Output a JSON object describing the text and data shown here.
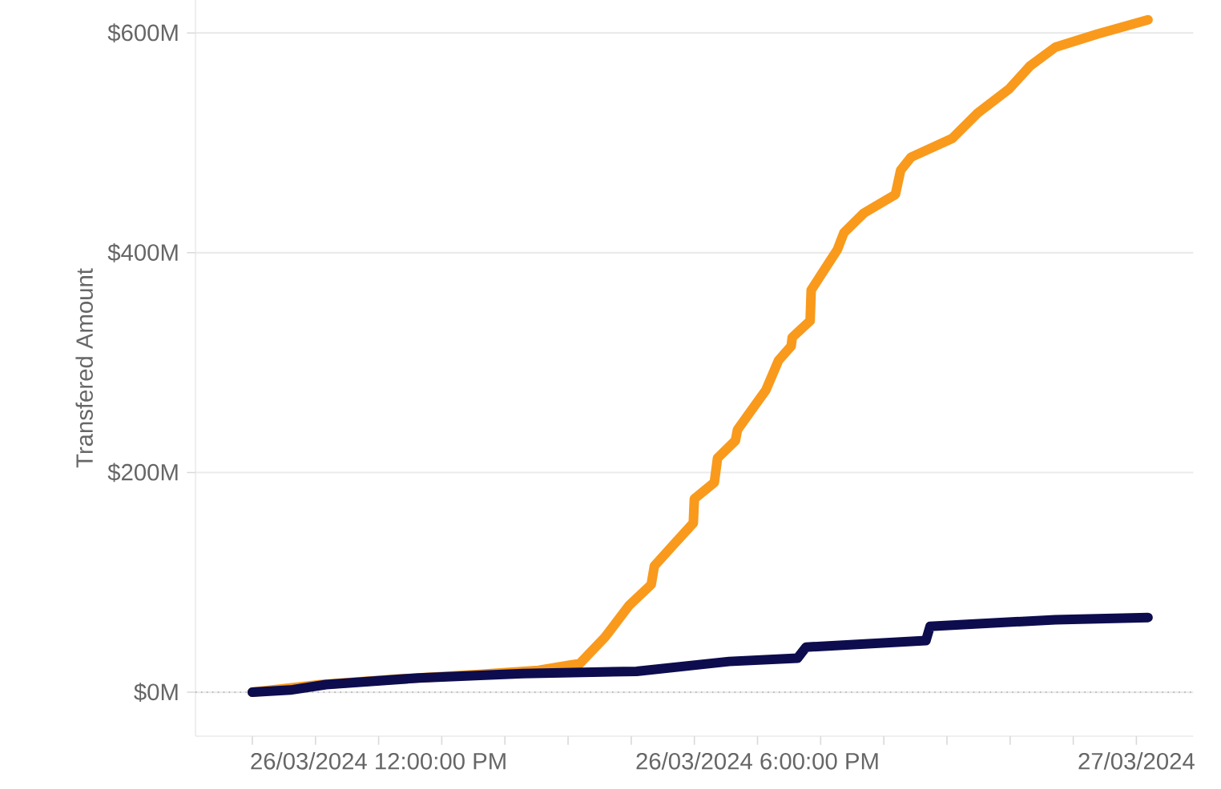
{
  "chart_data": {
    "type": "line",
    "ylabel": "Transfered Amount",
    "xlim": [
      "2024-03-26T09:06",
      "2024-03-27T00:54"
    ],
    "ylim": [
      -40,
      630
    ],
    "xticks": [
      {
        "value": "2024-03-26T10:00",
        "label": null
      },
      {
        "value": "2024-03-26T11:00",
        "label": null
      },
      {
        "value": "2024-03-26T12:00",
        "label": "26/03/2024 12:00:00 PM"
      },
      {
        "value": "2024-03-26T13:00",
        "label": null
      },
      {
        "value": "2024-03-26T14:00",
        "label": null
      },
      {
        "value": "2024-03-26T15:00",
        "label": null
      },
      {
        "value": "2024-03-26T16:00",
        "label": null
      },
      {
        "value": "2024-03-26T17:00",
        "label": null
      },
      {
        "value": "2024-03-26T18:00",
        "label": "26/03/2024 6:00:00 PM"
      },
      {
        "value": "2024-03-26T19:00",
        "label": null
      },
      {
        "value": "2024-03-26T20:00",
        "label": null
      },
      {
        "value": "2024-03-26T21:00",
        "label": null
      },
      {
        "value": "2024-03-26T22:00",
        "label": null
      },
      {
        "value": "2024-03-26T23:00",
        "label": null
      },
      {
        "value": "2024-03-27T00:00",
        "label": "27/03/2024"
      }
    ],
    "yticks": [
      {
        "value": 0,
        "label": "$0M"
      },
      {
        "value": 200,
        "label": "$200M"
      },
      {
        "value": 400,
        "label": "$400M"
      },
      {
        "value": 600,
        "label": "$600M"
      }
    ],
    "grid": "y",
    "line_style": "solid",
    "ref_lines": [
      {
        "axis": "y",
        "value": 0,
        "label": null,
        "color": "#aaaaaa",
        "line_style": "dotted"
      }
    ],
    "series": [
      {
        "color": "#f99a1c",
        "x": [
          "2024-03-26T10:00",
          "2024-03-26T11:05",
          "2024-03-26T12:19",
          "2024-03-26T13:33",
          "2024-03-26T14:32",
          "2024-03-26T15:04",
          "2024-03-26T15:11",
          "2024-03-26T15:35",
          "2024-03-26T15:58",
          "2024-03-26T16:19",
          "2024-03-26T16:22",
          "2024-03-26T16:40",
          "2024-03-26T16:59",
          "2024-03-26T17:00",
          "2024-03-26T17:19",
          "2024-03-26T17:22",
          "2024-03-26T17:39",
          "2024-03-26T17:41",
          "2024-03-26T18:08",
          "2024-03-26T18:20",
          "2024-03-26T18:32",
          "2024-03-26T18:33",
          "2024-03-26T18:50",
          "2024-03-26T18:51",
          "2024-03-26T19:16",
          "2024-03-26T19:22",
          "2024-03-26T19:41",
          "2024-03-26T20:11",
          "2024-03-26T20:16",
          "2024-03-26T20:26",
          "2024-03-26T21:05",
          "2024-03-26T21:29",
          "2024-03-26T21:59",
          "2024-03-26T22:19",
          "2024-03-26T22:43",
          "2024-03-26T23:23",
          "2024-03-27T00:11"
        ],
        "values": [
          0,
          7,
          12,
          16,
          20,
          25,
          26,
          50,
          79,
          98,
          115,
          134,
          154,
          176,
          191,
          213,
          229,
          239,
          275,
          302,
          315,
          323,
          338,
          366,
          403,
          418,
          436,
          453,
          475,
          487,
          504,
          527,
          549,
          570,
          587,
          599,
          612
        ]
      },
      {
        "color": "#0c0c4e",
        "x": [
          "2024-03-26T10:00",
          "2024-03-26T10:36",
          "2024-03-26T11:10",
          "2024-03-26T12:38",
          "2024-03-26T14:17",
          "2024-03-26T16:05",
          "2024-03-26T17:33",
          "2024-03-26T18:38",
          "2024-03-26T18:46",
          "2024-03-26T20:40",
          "2024-03-26T20:44",
          "2024-03-26T22:43",
          "2024-03-27T00:11"
        ],
        "values": [
          0,
          2,
          7,
          13,
          17,
          19,
          28,
          31,
          41,
          47,
          60,
          66,
          68
        ]
      }
    ]
  }
}
